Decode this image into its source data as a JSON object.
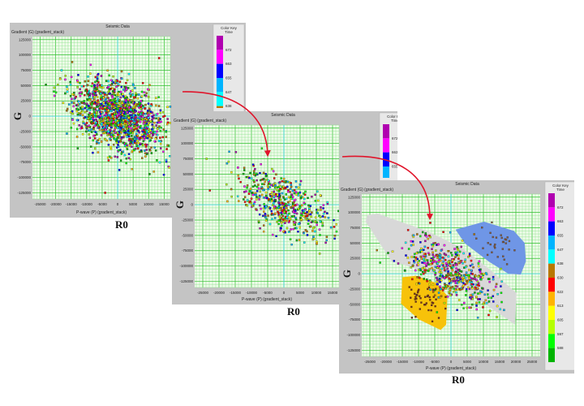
{
  "chart_data": [
    {
      "type": "scatter",
      "title": "Seismic Data",
      "ylabel": "Gradient (G) (gradient_stack)",
      "xlabel": "P-wave (P) (gradient_stack)",
      "axis_letter": "G",
      "caption": "R0",
      "xlim": [
        -27500,
        17000
      ],
      "ylim": [
        -135000,
        130000
      ],
      "xticks": [
        -25000,
        -20000,
        -15000,
        -10000,
        -5000,
        0,
        5000,
        10000,
        15000
      ],
      "yticks": [
        125000,
        100000,
        75000,
        50000,
        25000,
        0,
        -25000,
        -50000,
        -75000,
        -100000,
        -125000
      ],
      "grid": true,
      "points_summary": {
        "count": 1500,
        "center": [
          0,
          0
        ],
        "sd": [
          7000,
          30000
        ],
        "correlation": -0.4
      },
      "polygons": []
    },
    {
      "type": "scatter",
      "title": "Seismic Data",
      "ylabel": "Gradient (G) (gradient_stack)",
      "xlabel": "P-wave (P) (gradient_stack)",
      "axis_letter": "G",
      "caption": "R0",
      "xlim": [
        -27500,
        17000
      ],
      "ylim": [
        -135000,
        130000
      ],
      "xticks": [
        -25000,
        -20000,
        -15000,
        -10000,
        -5000,
        0,
        5000,
        10000,
        15000
      ],
      "yticks": [
        125000,
        100000,
        75000,
        50000,
        25000,
        0,
        -25000,
        -50000,
        -75000,
        -100000,
        -125000
      ],
      "grid": true,
      "points_summary": {
        "count": 550,
        "center": [
          0,
          0
        ],
        "sd": [
          7000,
          28000
        ],
        "correlation": -0.6
      },
      "polygons": []
    },
    {
      "type": "scatter",
      "title": "Seismic Data",
      "ylabel": "Gradient (G) (gradient_stack)",
      "xlabel": "P-wave (P) (gradient_stack)",
      "axis_letter": "G",
      "caption": "R0",
      "xlim": [
        -27500,
        27500
      ],
      "ylim": [
        -135000,
        130000
      ],
      "xticks": [
        -25000,
        -20000,
        -15000,
        -10000,
        -5000,
        0,
        5000,
        10000,
        15000,
        20000,
        25000
      ],
      "yticks": [
        125000,
        100000,
        75000,
        50000,
        25000,
        0,
        -25000,
        -50000,
        -75000,
        -100000,
        -125000
      ],
      "grid": true,
      "points_summary": {
        "count": 550,
        "center": [
          0,
          0
        ],
        "sd": [
          7000,
          28000
        ],
        "correlation": -0.6
      },
      "polygons": [
        {
          "name": "gray-zone",
          "color": "#d8d8d8",
          "points": [
            [
              -25800,
              95700
            ],
            [
              -22500,
              97800
            ],
            [
              -7400,
              69800
            ],
            [
              3500,
              41800
            ],
            [
              11900,
              7300
            ],
            [
              20200,
              -31500
            ],
            [
              19800,
              -83200
            ],
            [
              -1500,
              -5600
            ],
            [
              -18300,
              20300
            ],
            [
              -26300,
              85000
            ]
          ]
        },
        {
          "name": "blue-zone",
          "color": "#6f96e6",
          "points": [
            [
              1400,
              72000
            ],
            [
              10200,
              85000
            ],
            [
              19400,
              69800
            ],
            [
              22700,
              50400
            ],
            [
              23100,
              20300
            ],
            [
              21500,
              -1300
            ],
            [
              17700,
              0
            ],
            [
              11800,
              19400
            ],
            [
              4300,
              49500
            ]
          ]
        },
        {
          "name": "yellow-zone",
          "color": "#f7c20a",
          "points": [
            [
              -15000,
              -5600
            ],
            [
              -10800,
              -3400
            ],
            [
              -4900,
              -14200
            ],
            [
              -1100,
              -35800
            ],
            [
              -1500,
              -83200
            ],
            [
              -3200,
              -91800
            ],
            [
              -9900,
              -74600
            ],
            [
              -15400,
              -48700
            ]
          ]
        }
      ],
      "cluster_points": [
        {
          "zone": "blue-zone",
          "count": 30,
          "center": [
            14000,
            45000
          ],
          "sd": [
            3500,
            15000
          ]
        },
        {
          "zone": "yellow-zone",
          "count": 45,
          "center": [
            -8000,
            -45000
          ],
          "sd": [
            2800,
            18000
          ]
        }
      ]
    }
  ],
  "color_key": {
    "title": "Color Key",
    "subtitle": "Time",
    "colors": [
      "#b000b0",
      "#ff00ff",
      "#0000ff",
      "#00b4ff",
      "#00ffff",
      "#b87800",
      "#ff0000",
      "#ffb400",
      "#ffff00",
      "#b4ff00",
      "#00ff00",
      "#00b400"
    ],
    "labels": [
      "672",
      "663",
      "655",
      "647",
      "638",
      "630",
      "622",
      "613",
      "605",
      "597",
      "588"
    ]
  },
  "arrow_color": "#e0142a"
}
